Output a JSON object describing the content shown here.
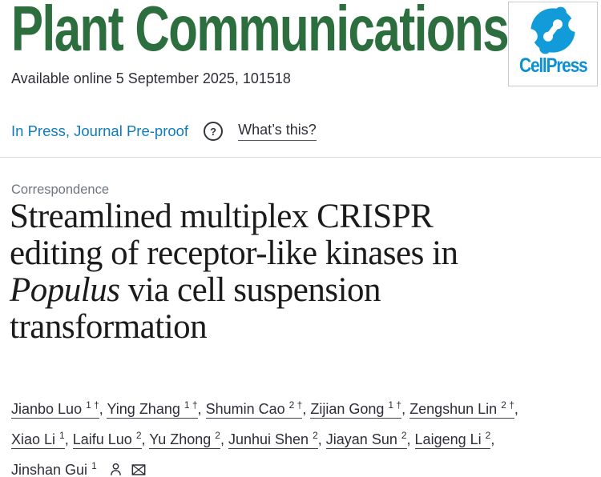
{
  "journal": {
    "name": "Plant Communications",
    "brand_color": "#2d6e3f"
  },
  "publisher": {
    "name": "CellPress",
    "logo_blue": "#119bd8",
    "wordmark_blue": "#0c90d2",
    "logo_icon": "cellpress-swirl-icon"
  },
  "meta": {
    "available_online": "Available online 5 September 2025, 101518"
  },
  "status": {
    "in_press_label": "In Press, Journal Pre-proof",
    "help_icon_glyph": "?",
    "whats_this_label": "What’s this?",
    "link_color": "#0f7cba"
  },
  "article": {
    "section_label": "Correspondence",
    "title_full": "Streamlined multiplex CRISPR editing of receptor-like kinases in Populus via cell suspension transformation",
    "title_line1": "Streamlined multiplex CRISPR",
    "title_line2": "editing of receptor-like kinases in",
    "title_line3_italic": "Populus",
    "title_line3_rest": " via cell suspension",
    "title_line4": "transformation"
  },
  "authors_section": {
    "separator": ", ",
    "line_breaks_after": [
      4,
      10
    ],
    "authors": [
      {
        "name": "Jianbo Luo",
        "sup": "1 †"
      },
      {
        "name": "Ying Zhang",
        "sup": "1 †"
      },
      {
        "name": "Shumin Cao",
        "sup": "2 †"
      },
      {
        "name": "Zijian Gong",
        "sup": "1 †"
      },
      {
        "name": "Zengshun Lin",
        "sup": "2 †"
      },
      {
        "name": "Xiao Li",
        "sup": "1"
      },
      {
        "name": "Laifu Luo",
        "sup": "2"
      },
      {
        "name": "Yu Zhong",
        "sup": "2"
      },
      {
        "name": "Junhui Shen",
        "sup": "2"
      },
      {
        "name": "Jiayan Sun",
        "sup": "2"
      },
      {
        "name": "Laigeng Li",
        "sup": "2"
      },
      {
        "name": "Jinshan Gui",
        "sup": "1",
        "corresponding": true
      }
    ],
    "corresponding_icons": [
      "person-icon",
      "envelope-icon"
    ]
  },
  "colors": {
    "text_dark": "#2e2e38",
    "muted_gray": "#6e7780",
    "divider": "#d8dce0",
    "title_black": "#1b1b1b"
  }
}
